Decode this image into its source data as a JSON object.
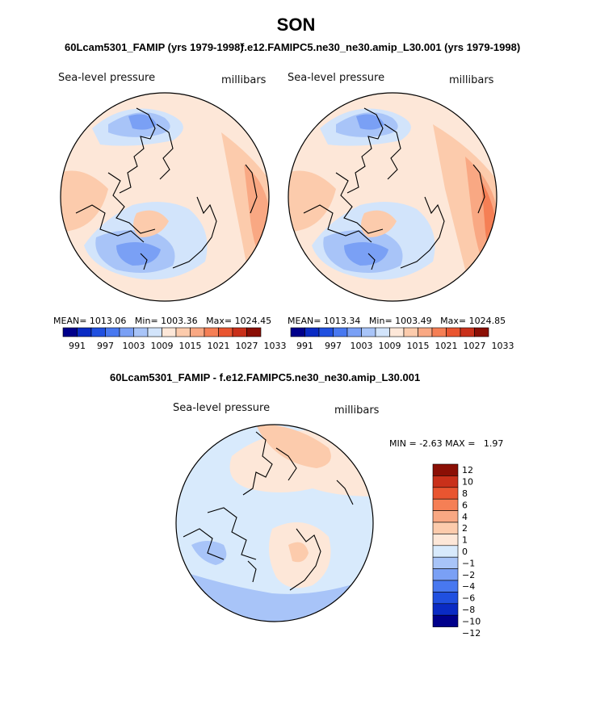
{
  "title": "SON",
  "panels": {
    "left": {
      "subtitle": "60Lcam5301_FAMIP (yrs 1979-1998)",
      "field": "Sea-level pressure",
      "units": "millibars",
      "stats": {
        "mean_label": "MEAN=",
        "mean": "1013.06",
        "min_label": "Min=",
        "min": "1003.36",
        "max_label": "Max=",
        "max": "1024.45"
      }
    },
    "right": {
      "subtitle": "f.e12.FAMIPC5.ne30_ne30.amip_L30.001 (yrs 1979-1998)",
      "field": "Sea-level pressure",
      "units": "millibars",
      "stats": {
        "mean_label": "MEAN=",
        "mean": "1013.34",
        "min_label": "Min=",
        "min": "1003.49",
        "max_label": "Max=",
        "max": "1024.85"
      }
    },
    "diff": {
      "subtitle": "60Lcam5301_FAMIP - f.e12.FAMIPC5.ne30_ne30.amip_L30.001",
      "field": "Sea-level pressure",
      "units": "millibars",
      "stats": {
        "min_label": "MIN =",
        "min": "-2.63",
        "max_label": "MAX =",
        "max": "1.97"
      }
    }
  },
  "colorbar_abs": {
    "colors": [
      "#00008b",
      "#0a2bc4",
      "#2050e0",
      "#4878f0",
      "#7aa0f5",
      "#a8c4f8",
      "#d2e4fb",
      "#fde7d8",
      "#fccbac",
      "#f9a883",
      "#f57f55",
      "#e95530",
      "#c9301a",
      "#8b0f05"
    ],
    "labels": [
      "991",
      "997",
      "1003",
      "1009",
      "1015",
      "1021",
      "1027",
      "1033"
    ]
  },
  "colorbar_diff": {
    "colors": [
      "#8b0f05",
      "#c9301a",
      "#e95530",
      "#f57f55",
      "#f9a883",
      "#fccbac",
      "#fde7d8",
      "#d8eafc",
      "#a8c4f8",
      "#7aa0f5",
      "#4878f0",
      "#2050e0",
      "#0a2bc4",
      "#00008b"
    ],
    "labels": [
      "12",
      "10",
      "8",
      "6",
      "4",
      "2",
      "1",
      "0",
      "−1",
      "−2",
      "−4",
      "−6",
      "−8",
      "−10",
      "−12"
    ]
  }
}
